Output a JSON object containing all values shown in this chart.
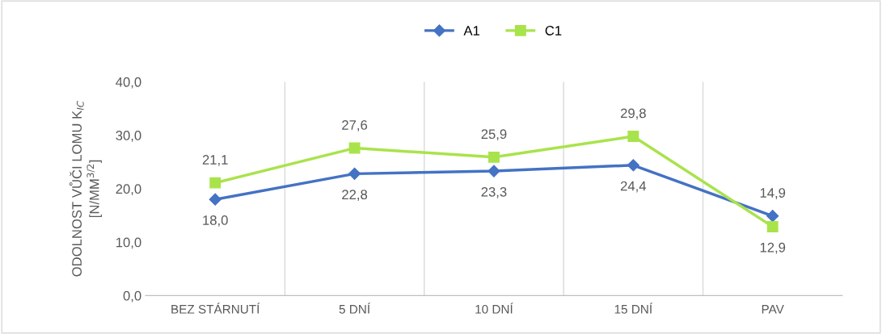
{
  "chart_data": {
    "type": "line",
    "ylabel": "ODOLNOST VŮČI LOMU K$_{IC}$\n[N/MM$^{3/2}$]",
    "categories": [
      "BEZ STÁRNUTÍ",
      "5 DNÍ",
      "10 DNÍ",
      "15 DNÍ",
      "PAV"
    ],
    "series": [
      {
        "name": "A1",
        "color": "#4472c4",
        "marker": "diamond",
        "values": [
          18.0,
          22.8,
          23.3,
          24.4,
          14.9
        ],
        "value_labels": [
          "18,0",
          "22,8",
          "23,3",
          "24,4",
          "14,9"
        ]
      },
      {
        "name": "C1",
        "color": "#a9e34b",
        "marker": "square",
        "values": [
          21.1,
          27.6,
          25.9,
          29.8,
          12.9
        ],
        "value_labels": [
          "21,1",
          "27,6",
          "25,9",
          "29,8",
          "12,9"
        ]
      }
    ],
    "ylim": [
      0,
      40
    ],
    "yticks": [
      {
        "value": 0,
        "label": "0,0"
      },
      {
        "value": 10,
        "label": "10,0"
      },
      {
        "value": 20,
        "label": "20,0"
      },
      {
        "value": 30,
        "label": "30,0"
      },
      {
        "value": 40,
        "label": "40,0"
      }
    ],
    "grid": "x",
    "legend": "top"
  }
}
